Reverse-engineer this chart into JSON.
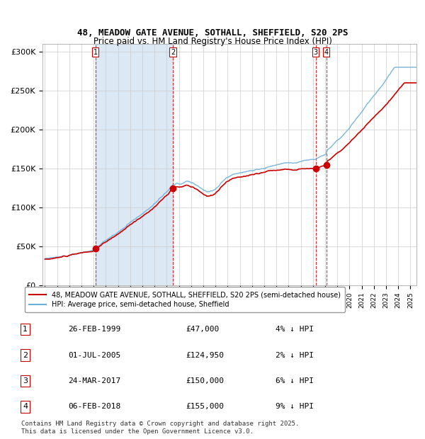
{
  "title_line1": "48, MEADOW GATE AVENUE, SOTHALL, SHEFFIELD, S20 2PS",
  "title_line2": "Price paid vs. HM Land Registry's House Price Index (HPI)",
  "ylabel": "",
  "ylim": [
    0,
    310000
  ],
  "yticks": [
    0,
    50000,
    100000,
    150000,
    200000,
    250000,
    300000
  ],
  "ytick_labels": [
    "£0",
    "£50K",
    "£100K",
    "£150K",
    "£200K",
    "£250K",
    "£300K"
  ],
  "x_start_year": 1995,
  "x_end_year": 2025,
  "sales": [
    {
      "date_year": 1999.15,
      "price": 47000,
      "label": "1"
    },
    {
      "date_year": 2005.5,
      "price": 124950,
      "label": "2"
    },
    {
      "date_year": 2017.23,
      "price": 150000,
      "label": "3"
    },
    {
      "date_year": 2018.09,
      "price": 155000,
      "label": "4"
    }
  ],
  "sale_vline_colors": [
    "#cc0000",
    "#cc0000",
    "#cc0000",
    "#cc0000"
  ],
  "shaded_region": [
    1999.15,
    2005.5
  ],
  "shaded_color": "#dce9f5",
  "hpi_color": "#6baed6",
  "price_color": "#cc0000",
  "marker_color": "#cc0000",
  "legend_label_red": "48, MEADOW GATE AVENUE, SOTHALL, SHEFFIELD, S20 2PS (semi-detached house)",
  "legend_label_blue": "HPI: Average price, semi-detached house, Sheffield",
  "table_rows": [
    [
      "1",
      "26-FEB-1999",
      "£47,000",
      "4% ↓ HPI"
    ],
    [
      "2",
      "01-JUL-2005",
      "£124,950",
      "2% ↓ HPI"
    ],
    [
      "3",
      "24-MAR-2017",
      "£150,000",
      "6% ↓ HPI"
    ],
    [
      "4",
      "06-FEB-2018",
      "£155,000",
      "9% ↓ HPI"
    ]
  ],
  "footer": "Contains HM Land Registry data © Crown copyright and database right 2025.\nThis data is licensed under the Open Government Licence v3.0.",
  "background_color": "#ffffff",
  "grid_color": "#cccccc"
}
